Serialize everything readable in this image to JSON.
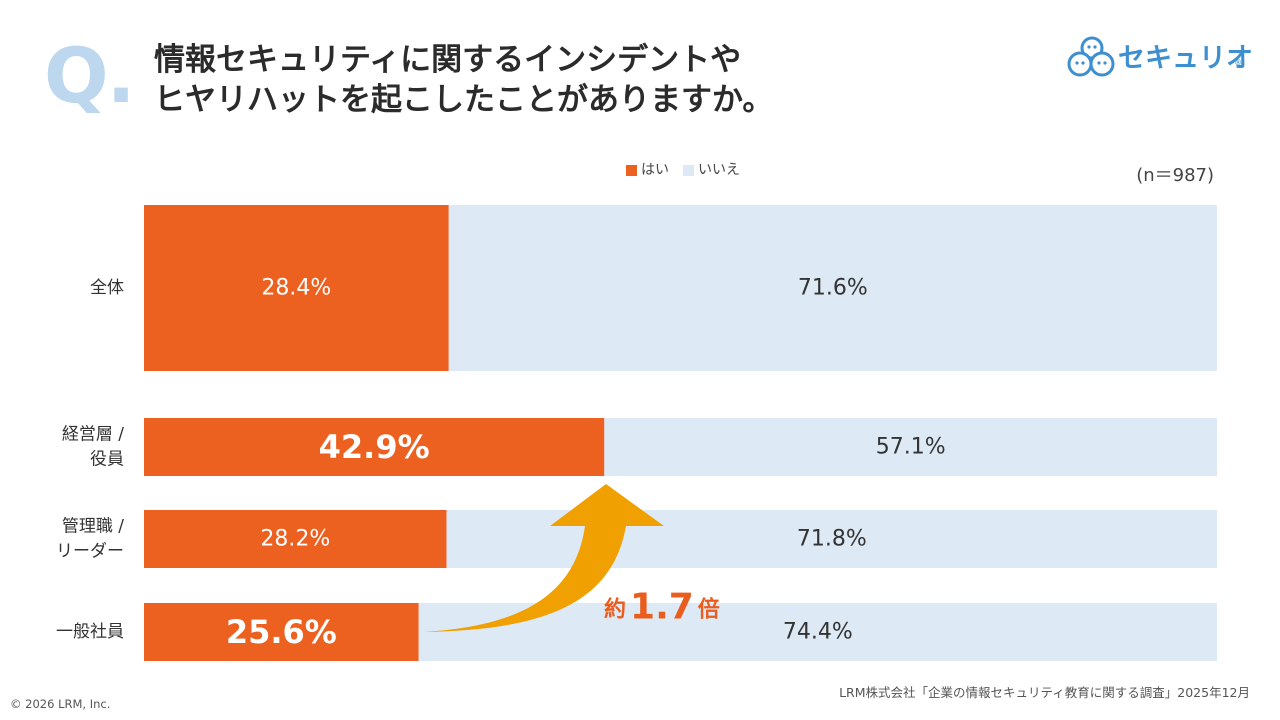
{
  "header": {
    "q_mark": "Q.",
    "title_line1": "情報セキュリティに関するインシデントや",
    "title_line2": "ヒヤリハットを起こしたことがありますか。"
  },
  "logo": {
    "text": "セキュリオ",
    "registered": "®"
  },
  "sample_size": "(n＝987)",
  "colors": {
    "yes": "#ec6020",
    "no": "#dde9f4",
    "arrow": "#f0a000",
    "accent_text": "#e95e1f",
    "q_mark": "#bcd7ee"
  },
  "chart_data": {
    "type": "bar",
    "orientation": "horizontal",
    "stacked": true,
    "percent": true,
    "legend": {
      "position": "top",
      "entries": [
        "はい",
        "いいえ"
      ]
    },
    "categories": [
      "全体",
      "経営層 / 役員",
      "管理職 / リーダー",
      "一般社員"
    ],
    "category_label_lines": [
      [
        "全体"
      ],
      [
        "経営層 /",
        "役員"
      ],
      [
        "管理職 /",
        "リーダー"
      ],
      [
        "一般社員"
      ]
    ],
    "series": [
      {
        "name": "はい",
        "values": [
          28.4,
          42.9,
          28.2,
          25.6
        ],
        "labels": [
          "28.4%",
          "42.9%",
          "28.2%",
          "25.6%"
        ]
      },
      {
        "name": "いいえ",
        "values": [
          71.6,
          57.1,
          71.8,
          74.4
        ],
        "labels": [
          "71.6%",
          "57.1%",
          "71.8%",
          "74.4%"
        ]
      }
    ],
    "xlim": [
      0,
      100
    ],
    "annotation": {
      "prefix": "約",
      "value": "1.7",
      "suffix": "倍",
      "from": "一般社員",
      "to": "経営層 / 役員"
    }
  },
  "footer": {
    "source": "LRM株式会社「企業の情報セキュリティ教育に関する調査」2025年12月",
    "copyright": "© 2026 LRM, Inc."
  }
}
